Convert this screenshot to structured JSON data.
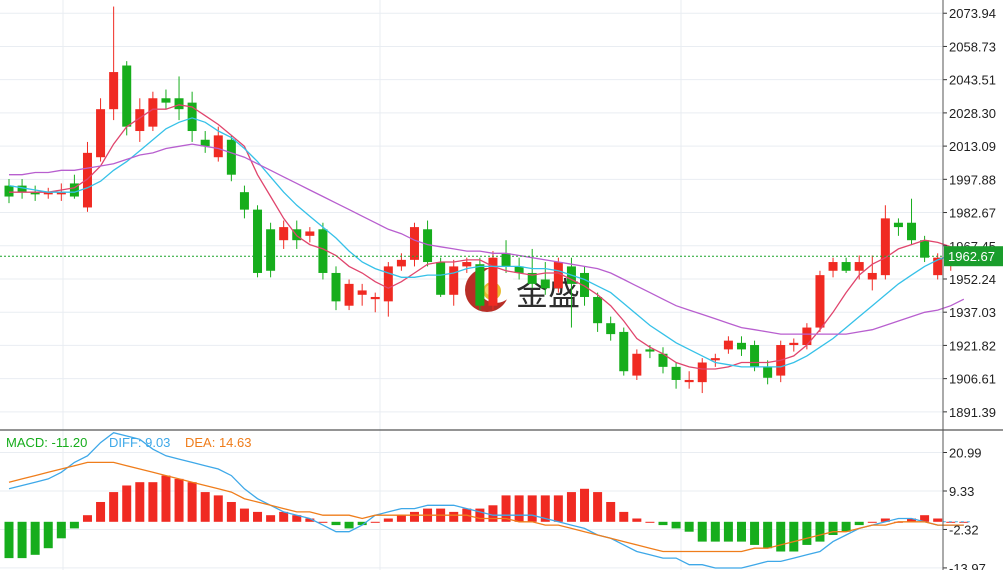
{
  "watermark": {
    "text": "金盛"
  },
  "colors": {
    "up": "#f02a22",
    "down": "#16ad1c",
    "ma5": "#e0456d",
    "ma10": "#36c1e8",
    "ma20": "#b85fcf",
    "diff": "#3ea8e8",
    "dea": "#ef7d1b",
    "price_line": "#1aa32a",
    "grid": "#e9edf2",
    "axis_text": "#222222"
  },
  "chart_data": [
    {
      "type": "candlestick",
      "ylim": [
        1884,
        2080
      ],
      "y_ticks": [
        "2073.94",
        "2058.73",
        "2043.51",
        "2028.30",
        "2013.09",
        "1997.88",
        "1982.67",
        "1967.45",
        "1952.24",
        "1937.03",
        "1921.82",
        "1906.61",
        "1891.39"
      ],
      "last_price": {
        "value": 1962.67,
        "label": "1962.67"
      },
      "candles": [
        [
          1995,
          1990,
          1998,
          1987
        ],
        [
          1995,
          1992,
          1998,
          1989
        ],
        [
          1992,
          1991,
          1995,
          1988
        ],
        [
          1991,
          1992,
          1994,
          1989
        ],
        [
          1991,
          1992,
          1996,
          1988
        ],
        [
          1996,
          1990,
          2000,
          1989
        ],
        [
          1985,
          2010,
          2015,
          1983
        ],
        [
          2008,
          2030,
          2035,
          2006
        ],
        [
          2030,
          2047,
          2077,
          2025
        ],
        [
          2050,
          2022,
          2052,
          2018
        ],
        [
          2020,
          2030,
          2035,
          2015
        ],
        [
          2022,
          2035,
          2038,
          2020
        ],
        [
          2035,
          2033,
          2039,
          2030
        ],
        [
          2035,
          2030,
          2045,
          2025
        ],
        [
          2033,
          2020,
          2038,
          2015
        ],
        [
          2016,
          2013,
          2020,
          2010
        ],
        [
          2008,
          2018,
          2022,
          2006
        ],
        [
          2016,
          2000,
          2018,
          1997
        ],
        [
          1992,
          1984,
          1995,
          1980
        ],
        [
          1984,
          1955,
          1986,
          1953
        ],
        [
          1975,
          1956,
          1978,
          1953
        ],
        [
          1970,
          1976,
          1979,
          1966
        ],
        [
          1975,
          1970,
          1979,
          1966
        ],
        [
          1972,
          1974,
          1976,
          1969
        ],
        [
          1975,
          1955,
          1978,
          1952
        ],
        [
          1955,
          1942,
          1958,
          1938
        ],
        [
          1940,
          1950,
          1952,
          1938
        ],
        [
          1945,
          1947,
          1950,
          1940
        ],
        [
          1943,
          1944,
          1946,
          1937
        ],
        [
          1942,
          1958,
          1960,
          1935
        ],
        [
          1958,
          1961,
          1964,
          1956
        ],
        [
          1961,
          1976,
          1978,
          1958
        ],
        [
          1975,
          1960,
          1979,
          1958
        ],
        [
          1960,
          1945,
          1962,
          1944
        ],
        [
          1945,
          1958,
          1961,
          1940
        ],
        [
          1958,
          1960,
          1962,
          1955
        ],
        [
          1959,
          1940,
          1962,
          1938
        ],
        [
          1940,
          1962,
          1965,
          1938
        ],
        [
          1964,
          1958,
          1970,
          1955
        ],
        [
          1958,
          1955,
          1962,
          1952
        ],
        [
          1955,
          1950,
          1966,
          1948
        ],
        [
          1952,
          1948,
          1960,
          1945
        ],
        [
          1948,
          1960,
          1962,
          1946
        ],
        [
          1958,
          1950,
          1962,
          1930
        ],
        [
          1955,
          1944,
          1958,
          1940
        ],
        [
          1944,
          1932,
          1946,
          1928
        ],
        [
          1932,
          1927,
          1935,
          1924
        ],
        [
          1928,
          1910,
          1930,
          1908
        ],
        [
          1908,
          1918,
          1920,
          1906
        ],
        [
          1920,
          1919,
          1922,
          1916
        ],
        [
          1918,
          1912,
          1921,
          1909
        ],
        [
          1912,
          1906,
          1914,
          1902
        ],
        [
          1905,
          1906,
          1910,
          1902
        ],
        [
          1905,
          1914,
          1916,
          1900
        ],
        [
          1915,
          1916,
          1918,
          1912
        ],
        [
          1920,
          1924,
          1926,
          1918
        ],
        [
          1923,
          1920,
          1926,
          1917
        ],
        [
          1922,
          1912,
          1924,
          1910
        ],
        [
          1912,
          1907,
          1915,
          1904
        ],
        [
          1908,
          1922,
          1924,
          1905
        ],
        [
          1922,
          1923,
          1925,
          1919
        ],
        [
          1922,
          1930,
          1932,
          1920
        ],
        [
          1930,
          1954,
          1956,
          1928
        ],
        [
          1956,
          1960,
          1962,
          1953
        ],
        [
          1960,
          1956,
          1962,
          1955
        ],
        [
          1956,
          1960,
          1963,
          1952
        ],
        [
          1952,
          1955,
          1963,
          1947
        ],
        [
          1954,
          1980,
          1986,
          1952
        ],
        [
          1978,
          1976,
          1980,
          1972
        ],
        [
          1978,
          1970,
          1989,
          1968
        ],
        [
          1970,
          1962,
          1972,
          1960
        ],
        [
          1954,
          1962,
          1964,
          1952
        ],
        [
          1960,
          1963,
          1966,
          1956
        ],
        [
          1964,
          1962,
          1966,
          1960
        ]
      ],
      "ma": [
        {
          "name": "MA5",
          "values": [
            1992,
            1992,
            1992,
            1992,
            1993,
            1994,
            1998,
            2004,
            2014,
            2022,
            2026,
            2030,
            2030,
            2032,
            2031,
            2027,
            2023,
            2018,
            2013,
            2000,
            1990,
            1980,
            1972,
            1968,
            1966,
            1963,
            1958,
            1955,
            1951,
            1948,
            1951,
            1955,
            1959,
            1960,
            1960,
            1961,
            1961,
            1958,
            1956,
            1955,
            1954,
            1955,
            1955,
            1952,
            1949,
            1945,
            1940,
            1933,
            1925,
            1921,
            1918,
            1914,
            1912,
            1911,
            1911,
            1912,
            1914,
            1914,
            1914,
            1915,
            1917,
            1922,
            1929,
            1937,
            1946,
            1954,
            1959,
            1962,
            1966,
            1968,
            1970,
            1969,
            1967,
            1965
          ]
        },
        {
          "name": "MA10",
          "values": [
            1995,
            1994,
            1993,
            1992,
            1992,
            1992,
            1994,
            1997,
            2002,
            2006,
            2011,
            2016,
            2021,
            2024,
            2026,
            2024,
            2020,
            2017,
            2012,
            2006,
            1999,
            1992,
            1986,
            1981,
            1976,
            1971,
            1965,
            1960,
            1957,
            1955,
            1953,
            1953,
            1954,
            1954,
            1955,
            1957,
            1958,
            1958,
            1958,
            1958,
            1957,
            1957,
            1956,
            1954,
            1952,
            1949,
            1946,
            1941,
            1936,
            1931,
            1927,
            1923,
            1920,
            1917,
            1914,
            1913,
            1912,
            1912,
            1912,
            1912,
            1914,
            1917,
            1921,
            1925,
            1930,
            1935,
            1940,
            1945,
            1950,
            1954,
            1958,
            1961,
            1963,
            1964
          ]
        },
        {
          "name": "MA20",
          "values": [
            2000,
            2000,
            2001,
            2001,
            2002,
            2002,
            2003,
            2004,
            2005,
            2007,
            2009,
            2010,
            2012,
            2013,
            2014,
            2013,
            2012,
            2010,
            2008,
            2005,
            2002,
            1999,
            1996,
            1993,
            1990,
            1987,
            1984,
            1981,
            1978,
            1975,
            1973,
            1970,
            1968,
            1967,
            1966,
            1965,
            1965,
            1964,
            1964,
            1963,
            1962,
            1961,
            1960,
            1959,
            1958,
            1957,
            1955,
            1952,
            1949,
            1946,
            1943,
            1940,
            1938,
            1936,
            1934,
            1932,
            1930,
            1929,
            1928,
            1927,
            1927,
            1927,
            1927,
            1927,
            1927,
            1928,
            1929,
            1931,
            1933,
            1935,
            1937,
            1938,
            1940,
            1943
          ]
        }
      ]
    },
    {
      "type": "macd",
      "ylim": [
        -14.6,
        27.2
      ],
      "legend": [
        {
          "name": "MACD",
          "value": "-11.20",
          "label": "MACD: -11.20"
        },
        {
          "name": "DIFF",
          "value": "9.03",
          "label": "DIFF: 9.03"
        },
        {
          "name": "DEA",
          "value": "14.63",
          "label": "DEA: 14.63"
        }
      ],
      "y_ticks": [
        "20.99",
        "9.33",
        "-2.32",
        "-13.97"
      ],
      "histogram": [
        -11,
        -11,
        -10,
        -8,
        -5,
        -2,
        2,
        6,
        9,
        11,
        12,
        12,
        14,
        13,
        12,
        9,
        8,
        6,
        4,
        3,
        2,
        3,
        2,
        1,
        0,
        -1,
        -2,
        -1,
        0,
        1,
        2,
        3,
        4,
        4,
        3,
        4,
        4,
        5,
        8,
        8,
        8,
        8,
        8,
        9,
        10,
        9,
        6,
        3,
        1,
        0,
        -1,
        -2,
        -3,
        -6,
        -6,
        -6,
        -6,
        -7,
        -8,
        -9,
        -9,
        -7,
        -6,
        -4,
        -3,
        -1,
        0,
        1,
        0,
        1,
        2,
        1,
        0,
        0
      ],
      "diff": [
        10,
        11,
        12,
        13,
        15,
        18,
        20,
        24,
        27,
        26,
        25,
        22,
        20,
        19,
        18,
        17,
        16,
        14,
        10,
        7,
        5,
        3,
        2,
        1,
        -1,
        -3,
        -3,
        -1,
        2,
        3,
        4,
        4,
        5,
        5,
        5,
        4,
        3,
        2,
        2,
        2,
        2,
        1,
        0,
        -1,
        -2,
        -4,
        -5,
        -7,
        -9,
        -10,
        -11,
        -11,
        -13,
        -13,
        -14,
        -14,
        -14,
        -13,
        -12,
        -12,
        -11,
        -10,
        -9,
        -6,
        -4,
        -2,
        -1,
        0,
        1,
        1,
        0,
        -1,
        -1,
        -1
      ],
      "dea": [
        12,
        13,
        14,
        15,
        16,
        17,
        18,
        18,
        18,
        17,
        16,
        15,
        14,
        13,
        12,
        11,
        10,
        9,
        7,
        6,
        5,
        4,
        3,
        3,
        2,
        2,
        2,
        1,
        2,
        2,
        2,
        2,
        2,
        2,
        2,
        2,
        1,
        1,
        1,
        0,
        0,
        -1,
        -1,
        -2,
        -3,
        -4,
        -5,
        -6,
        -7,
        -8,
        -9,
        -9,
        -9,
        -9,
        -9,
        -9,
        -9,
        -8,
        -8,
        -7,
        -6,
        -5,
        -4,
        -3,
        -3,
        -2,
        -1,
        -1,
        0,
        0,
        0,
        -1,
        -1,
        -1
      ]
    }
  ]
}
